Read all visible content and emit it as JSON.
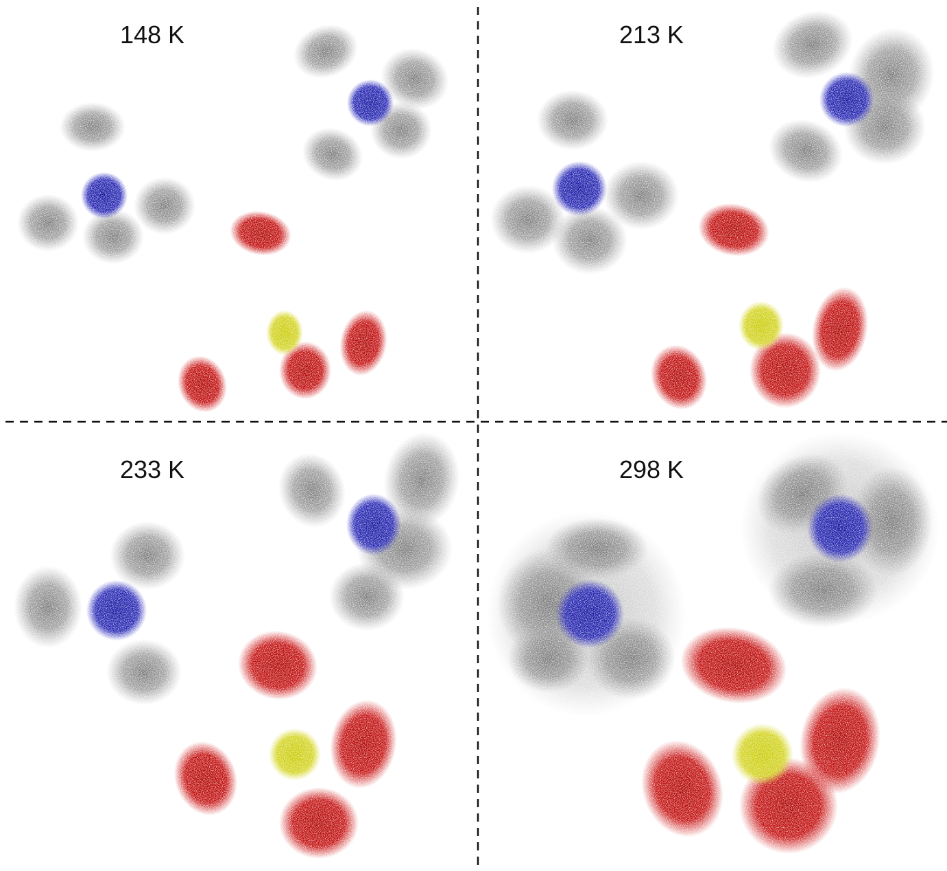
{
  "panels": [
    {
      "label": "148 K"
    },
    {
      "label": "213 K"
    },
    {
      "label": "233 K"
    },
    {
      "label": "298 K"
    }
  ]
}
